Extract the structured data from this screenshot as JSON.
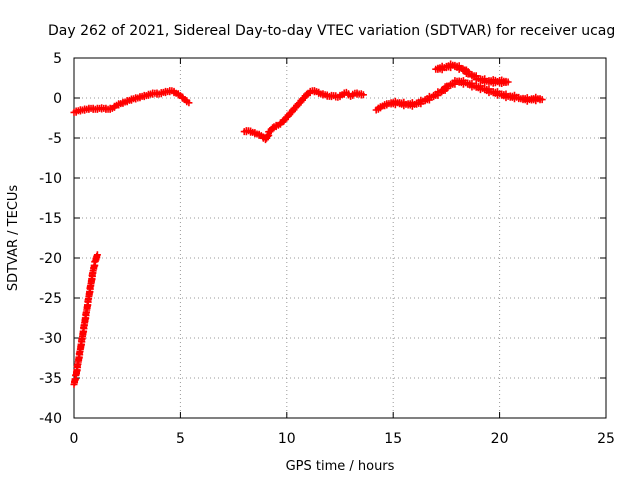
{
  "chart_data": {
    "type": "scatter",
    "title": "Day 262 of 2021, Sidereal Day-to-day VTEC variation (SDTVAR) for receiver ucag",
    "xlabel": "GPS time / hours",
    "ylabel": "SDTVAR / TECUs",
    "xlim": [
      0,
      25
    ],
    "ylim": [
      -40,
      5
    ],
    "grid": true,
    "x_ticks": [
      {
        "value": 0,
        "label": "0"
      },
      {
        "value": 5,
        "label": "5"
      },
      {
        "value": 10,
        "label": "10"
      },
      {
        "value": 15,
        "label": "15"
      },
      {
        "value": 20,
        "label": "20"
      },
      {
        "value": 25,
        "label": "25"
      }
    ],
    "y_ticks": [
      {
        "value": 5,
        "label": "5"
      },
      {
        "value": 0,
        "label": "0"
      },
      {
        "value": -5,
        "label": "-5"
      },
      {
        "value": -10,
        "label": "-10"
      },
      {
        "value": -15,
        "label": "-15"
      },
      {
        "value": -20,
        "label": "-20"
      },
      {
        "value": -25,
        "label": "-25"
      },
      {
        "value": -30,
        "label": "-30"
      },
      {
        "value": -35,
        "label": "-35"
      },
      {
        "value": -40,
        "label": "-40"
      }
    ],
    "marker": "+",
    "color": "#ff0000",
    "series": [
      {
        "name": "segment-1",
        "points": [
          [
            0.0,
            -1.8
          ],
          [
            0.2,
            -1.6
          ],
          [
            0.4,
            -1.5
          ],
          [
            0.6,
            -1.4
          ],
          [
            0.8,
            -1.3
          ],
          [
            1.0,
            -1.4
          ],
          [
            1.2,
            -1.3
          ],
          [
            1.4,
            -1.3
          ],
          [
            1.6,
            -1.4
          ],
          [
            1.8,
            -1.3
          ],
          [
            2.0,
            -0.9
          ],
          [
            2.2,
            -0.7
          ],
          [
            2.4,
            -0.5
          ],
          [
            2.6,
            -0.3
          ],
          [
            2.8,
            -0.1
          ],
          [
            3.0,
            0.0
          ],
          [
            3.2,
            0.2
          ],
          [
            3.4,
            0.3
          ],
          [
            3.6,
            0.5
          ],
          [
            3.8,
            0.6
          ],
          [
            4.0,
            0.5
          ],
          [
            4.2,
            0.7
          ],
          [
            4.4,
            0.8
          ],
          [
            4.6,
            0.9
          ],
          [
            4.8,
            0.6
          ],
          [
            5.0,
            0.3
          ],
          [
            5.2,
            -0.2
          ],
          [
            5.4,
            -0.6
          ]
        ]
      },
      {
        "name": "segment-2",
        "points": [
          [
            8.0,
            -4.2
          ],
          [
            8.2,
            -4.1
          ],
          [
            8.4,
            -4.3
          ],
          [
            8.6,
            -4.5
          ],
          [
            8.8,
            -4.7
          ],
          [
            9.0,
            -5.2
          ],
          [
            9.2,
            -4.2
          ],
          [
            9.4,
            -3.6
          ],
          [
            9.6,
            -3.4
          ],
          [
            9.8,
            -3.0
          ],
          [
            10.0,
            -2.4
          ],
          [
            10.2,
            -1.8
          ],
          [
            10.4,
            -1.2
          ],
          [
            10.6,
            -0.6
          ],
          [
            10.8,
            0.0
          ],
          [
            11.0,
            0.6
          ],
          [
            11.2,
            0.9
          ],
          [
            11.4,
            0.8
          ],
          [
            11.6,
            0.5
          ],
          [
            11.8,
            0.4
          ],
          [
            12.0,
            0.2
          ],
          [
            12.2,
            0.3
          ],
          [
            12.4,
            0.1
          ],
          [
            12.6,
            0.4
          ],
          [
            12.8,
            0.7
          ],
          [
            13.0,
            0.2
          ],
          [
            13.2,
            0.6
          ],
          [
            13.4,
            0.5
          ],
          [
            13.6,
            0.4
          ]
        ]
      },
      {
        "name": "segment-3",
        "points": [
          [
            14.2,
            -1.5
          ],
          [
            14.5,
            -1.0
          ],
          [
            14.8,
            -0.7
          ],
          [
            15.2,
            -0.6
          ],
          [
            15.6,
            -0.8
          ],
          [
            16.0,
            -0.8
          ],
          [
            16.4,
            -0.4
          ],
          [
            16.8,
            0.1
          ],
          [
            17.2,
            0.7
          ],
          [
            17.6,
            1.5
          ],
          [
            18.0,
            2.1
          ],
          [
            18.4,
            1.9
          ],
          [
            18.8,
            1.5
          ],
          [
            19.2,
            1.2
          ],
          [
            19.6,
            0.8
          ],
          [
            20.0,
            0.5
          ],
          [
            20.4,
            0.2
          ],
          [
            20.8,
            0.1
          ],
          [
            21.0,
            -0.1
          ],
          [
            21.4,
            -0.2
          ],
          [
            21.8,
            -0.1
          ],
          [
            22.0,
            -0.2
          ],
          [
            17.0,
            3.6
          ],
          [
            17.4,
            3.8
          ],
          [
            17.8,
            4.1
          ],
          [
            18.2,
            3.7
          ],
          [
            18.6,
            3.0
          ],
          [
            19.0,
            2.4
          ],
          [
            19.4,
            2.1
          ],
          [
            20.4,
            2.0
          ]
        ]
      },
      {
        "name": "segment-4",
        "points": [
          [
            0.0,
            -35.8
          ],
          [
            0.1,
            -34.6
          ],
          [
            0.2,
            -33.0
          ],
          [
            0.3,
            -31.4
          ],
          [
            0.4,
            -29.8
          ],
          [
            0.5,
            -28.1
          ],
          [
            0.6,
            -26.5
          ],
          [
            0.7,
            -24.8
          ],
          [
            0.8,
            -23.2
          ],
          [
            0.9,
            -21.6
          ],
          [
            1.0,
            -20.4
          ],
          [
            1.1,
            -19.6
          ]
        ]
      }
    ]
  }
}
